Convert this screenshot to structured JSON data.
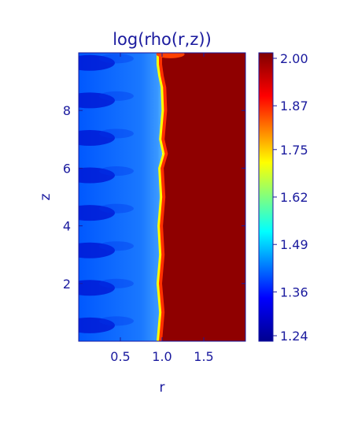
{
  "chart_data": {
    "type": "heatmap",
    "title": "log(rho(r,z))",
    "xlabel": "r",
    "ylabel": "z",
    "xlim": [
      0.0,
      2.0
    ],
    "ylim": [
      0.0,
      10.0
    ],
    "x_ticks": [
      0.5,
      1.0,
      1.5
    ],
    "x_tick_labels": [
      "0.5",
      "1.0",
      "1.5"
    ],
    "y_ticks": [
      2,
      4,
      6,
      8
    ],
    "y_tick_labels": [
      "2",
      "4",
      "6",
      "8"
    ],
    "colorbar": {
      "min": 1.24,
      "max": 2.0,
      "tick_values": [
        1.24,
        1.36,
        1.49,
        1.62,
        1.75,
        1.87,
        2.0
      ],
      "tick_labels": [
        "1.24",
        "1.36",
        "1.49",
        "1.62",
        "1.75",
        "1.87",
        "2.00"
      ]
    },
    "field": {
      "inner_region_r": [
        0.0,
        1.0
      ],
      "inner_value_range": [
        1.24,
        1.45
      ],
      "outer_region_r": [
        1.0,
        2.0
      ],
      "outer_value": 2.0,
      "interface_r": 1.0
    }
  },
  "colors": {
    "axis_text": "#1a1a9e",
    "cmap": [
      "#00008f",
      "#0000ff",
      "#00ffff",
      "#ffff00",
      "#ff0000",
      "#800000"
    ]
  }
}
